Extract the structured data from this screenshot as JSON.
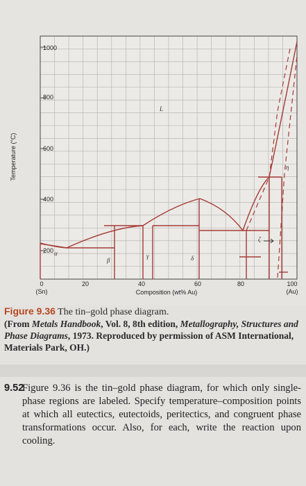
{
  "figure": {
    "axis": {
      "ylabel": "Temperature (°C)",
      "xlabel": "Composition (wt% Au)",
      "y_ticks": [
        "1000",
        "800",
        "600",
        "400",
        "200"
      ],
      "x_ticks": [
        "0",
        "20",
        "40",
        "60",
        "80",
        "100"
      ],
      "x_end_labels": {
        "left": "(Sn)",
        "right": "(Au)"
      }
    },
    "phase_labels": {
      "liquid": "L",
      "alpha": "α",
      "beta": "β",
      "gamma": "γ",
      "delta": "δ",
      "zeta": "ζ",
      "eta": "η"
    },
    "line_color": "#a33a35",
    "grid_color": "#b9b7b4",
    "paper_color": "#eceae6"
  },
  "caption": {
    "label": "Figure 9.36",
    "title": "The tin–gold phase diagram.",
    "source_open": "(From ",
    "source_title": "Metals Handbook",
    "source_mid": ", Vol. 8, 8th edition, ",
    "source_title2": "Metallography, Structures and Phase Diagrams",
    "source_end": ", 1973. Reproduced by permission of ASM International, Materials Park, OH.)"
  },
  "problem": {
    "number": "9.52",
    "text": "Figure 9.36 is the tin–gold phase diagram, for which only single-phase regions are labeled. Specify temperature–composition points at which all eutectics, eutectoids, peritectics, and congruent phase transformations occur. Also, for each, write the reaction upon cooling."
  }
}
